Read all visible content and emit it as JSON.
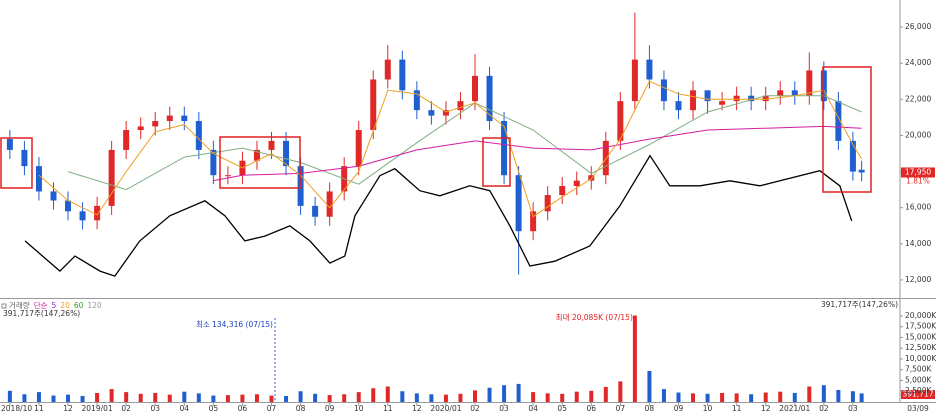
{
  "chart_data": [
    {
      "type": "candlestick",
      "xlim": [
        -0.34,
        30.62
      ],
      "ylim": [
        11000,
        27500
      ],
      "yticks": [
        {
          "value": 12000,
          "label": "12,000"
        },
        {
          "value": 14000,
          "label": "14,000"
        },
        {
          "value": 16000,
          "label": "16,000"
        },
        {
          "value": 18000,
          "label": "18,000"
        },
        {
          "value": 20000,
          "label": "20,000"
        },
        {
          "value": 22000,
          "label": "22,000"
        },
        {
          "value": 24000,
          "label": "24,000"
        },
        {
          "value": 26000,
          "label": "26,000"
        }
      ],
      "up_color": "#e02828",
      "down_color": "#1f5fd0",
      "x": [
        0,
        0.5,
        1,
        1.5,
        2,
        2.5,
        3,
        3.5,
        4,
        4.5,
        5,
        5.5,
        6,
        6.5,
        7,
        7.5,
        8,
        8.5,
        9,
        9.5,
        10,
        10.5,
        11,
        11.5,
        12,
        12.5,
        13,
        13.5,
        14,
        14.5,
        15,
        15.5,
        16,
        16.5,
        17,
        17.5,
        18,
        18.5,
        19,
        19.5,
        20,
        20.5,
        21,
        21.5,
        22,
        22.5,
        23,
        23.5,
        24,
        24.5,
        25,
        25.5,
        26,
        26.5,
        27,
        27.5,
        28,
        28.5,
        29,
        29.3
      ],
      "open": [
        19800,
        19200,
        18300,
        16900,
        16400,
        15800,
        15300,
        16100,
        19200,
        20300,
        20500,
        20800,
        21100,
        20800,
        19200,
        17800,
        17800,
        18600,
        19200,
        19700,
        18300,
        16100,
        15500,
        16900,
        18300,
        20300,
        23100,
        24200,
        22500,
        21400,
        21100,
        21400,
        21900,
        23300,
        20800,
        17800,
        14700,
        15800,
        16700,
        17200,
        17500,
        17800,
        19700,
        21900,
        24200,
        23100,
        21900,
        21400,
        22500,
        21700,
        21900,
        22200,
        21900,
        22200,
        22500,
        22200,
        23600,
        21900,
        19700,
        18100
      ],
      "high": [
        20300,
        19700,
        18800,
        17400,
        16900,
        16300,
        16600,
        19700,
        20800,
        21000,
        21300,
        21600,
        21600,
        21300,
        19700,
        18300,
        19100,
        19700,
        20200,
        20200,
        18800,
        16600,
        17400,
        18800,
        20800,
        23600,
        25000,
        24700,
        23000,
        21900,
        21900,
        22400,
        24500,
        23800,
        21300,
        18300,
        16300,
        17200,
        17700,
        18000,
        18300,
        20200,
        22400,
        26800,
        25000,
        23600,
        22400,
        23000,
        22400,
        22400,
        22700,
        22700,
        22700,
        23000,
        23000,
        24600,
        24100,
        22400,
        20200,
        18600
      ],
      "low": [
        18700,
        17800,
        16400,
        15900,
        15300,
        14800,
        14800,
        15600,
        18700,
        19800,
        20000,
        20300,
        20300,
        18700,
        17300,
        17300,
        17300,
        18100,
        18700,
        17800,
        15600,
        15000,
        15000,
        16400,
        17800,
        19800,
        22600,
        22000,
        20900,
        20600,
        20600,
        20900,
        21400,
        20300,
        17300,
        12300,
        14200,
        15300,
        16200,
        16700,
        17000,
        17300,
        19200,
        21400,
        22600,
        21400,
        20900,
        20900,
        21200,
        21400,
        21400,
        21400,
        21400,
        21700,
        21700,
        21700,
        21400,
        19200,
        17500,
        17450
      ],
      "close": [
        19200,
        18300,
        16900,
        16400,
        15800,
        15300,
        16100,
        19200,
        20300,
        20500,
        20800,
        21100,
        20800,
        19200,
        17800,
        17800,
        18600,
        19200,
        19700,
        18300,
        16100,
        15500,
        16900,
        18300,
        20300,
        23100,
        24200,
        22500,
        21400,
        21100,
        21400,
        21900,
        23300,
        20800,
        17800,
        14700,
        15800,
        16700,
        17200,
        17500,
        17800,
        19700,
        21900,
        24200,
        23100,
        21900,
        21400,
        22500,
        21900,
        21900,
        22200,
        21900,
        22200,
        22500,
        22200,
        23600,
        21900,
        19700,
        18000,
        17950
      ],
      "series": [
        {
          "color": "#000000",
          "x": [
            0.52,
            1.72,
            2.24,
            3.1,
            3.61,
            4.47,
            5.5,
            6.71,
            7.4,
            8.08,
            8.77,
            9.63,
            10.32,
            11.01,
            11.52,
            11.87,
            12.73,
            13.24,
            14.1,
            14.79,
            15.82,
            16.51,
            17.2,
            17.89,
            18.75,
            19.95,
            20.98,
            22.02,
            22.7,
            23.74,
            24.77,
            25.8,
            26.49,
            27.86,
            28.55,
            28.96
          ],
          "values": [
            14160,
            12490,
            13320,
            12490,
            12210,
            14160,
            15550,
            16380,
            15550,
            14160,
            14430,
            14990,
            14160,
            12930,
            13320,
            15550,
            17770,
            18160,
            16940,
            16660,
            17210,
            16940,
            14990,
            12770,
            13040,
            13880,
            16100,
            18880,
            17210,
            17210,
            17490,
            17210,
            17490,
            18050,
            17210,
            15270
          ]
        },
        {
          "color": "#7fae7f",
          "x": [
            2,
            4,
            6,
            8,
            10,
            12,
            14,
            16,
            18,
            20,
            22,
            24,
            26,
            28,
            29.3
          ],
          "values": [
            18000,
            17000,
            18800,
            19300,
            18500,
            17300,
            19600,
            21800,
            20300,
            17900,
            19500,
            21300,
            22200,
            22200,
            21300
          ]
        },
        {
          "color": "#d41ca0",
          "x": [
            7,
            8,
            10,
            12,
            14,
            16,
            18,
            20,
            22,
            24,
            26,
            28,
            29.3
          ],
          "values": [
            17500,
            17800,
            17900,
            18300,
            19200,
            19700,
            19300,
            19200,
            19800,
            20300,
            20400,
            20500,
            20400
          ]
        },
        {
          "color": "#eea020",
          "x": [
            1,
            2,
            3,
            4,
            5,
            6,
            7,
            8,
            9,
            10,
            11,
            12,
            13,
            14,
            15,
            16,
            17,
            18,
            19,
            20,
            21,
            22,
            23,
            24,
            25,
            26,
            27,
            28,
            29,
            29.3
          ],
          "values": [
            17800,
            16400,
            15600,
            18000,
            20200,
            20600,
            19000,
            18200,
            19000,
            17800,
            16000,
            18000,
            22500,
            22300,
            21300,
            21800,
            20500,
            15500,
            16600,
            17600,
            19800,
            23000,
            22300,
            22000,
            22000,
            22000,
            22200,
            22500,
            19500,
            18700
          ]
        }
      ],
      "last_price": {
        "value": 17950,
        "label": "17,950"
      },
      "change": "1.81%"
    },
    {
      "type": "bar",
      "xlim": [
        -0.34,
        30.62
      ],
      "ylim": [
        0,
        23700
      ],
      "yticks": [
        {
          "value": 2500,
          "label": "2,500K"
        },
        {
          "value": 5000,
          "label": "5,000K"
        },
        {
          "value": 7500,
          "label": "7,500K"
        },
        {
          "value": 10000,
          "label": "10,000K"
        },
        {
          "value": 12500,
          "label": "12,500K"
        },
        {
          "value": 15000,
          "label": "15,000K"
        },
        {
          "value": 17500,
          "label": "17,500K"
        },
        {
          "value": 20000,
          "label": "20,000K"
        }
      ],
      "xticks": [
        {
          "value": 0,
          "label": "2018/10"
        },
        {
          "value": 1,
          "label": "11"
        },
        {
          "value": 2,
          "label": "12"
        },
        {
          "value": 3,
          "label": "2019/01"
        },
        {
          "value": 4,
          "label": "02"
        },
        {
          "value": 5,
          "label": "03"
        },
        {
          "value": 6,
          "label": "04"
        },
        {
          "value": 7,
          "label": "05"
        },
        {
          "value": 8,
          "label": "06"
        },
        {
          "value": 9,
          "label": "07"
        },
        {
          "value": 10,
          "label": "08"
        },
        {
          "value": 11,
          "label": "09"
        },
        {
          "value": 12,
          "label": "10"
        },
        {
          "value": 13,
          "label": "11"
        },
        {
          "value": 14,
          "label": "12"
        },
        {
          "value": 15,
          "label": "2020/01"
        },
        {
          "value": 16,
          "label": "02"
        },
        {
          "value": 17,
          "label": "03"
        },
        {
          "value": 18,
          "label": "04"
        },
        {
          "value": 19,
          "label": "05"
        },
        {
          "value": 20,
          "label": "06"
        },
        {
          "value": 21,
          "label": "07"
        },
        {
          "value": 22,
          "label": "08"
        },
        {
          "value": 23,
          "label": "09"
        },
        {
          "value": 24,
          "label": "10"
        },
        {
          "value": 25,
          "label": "11"
        },
        {
          "value": 26,
          "label": "12"
        },
        {
          "value": 27,
          "label": "2021/01"
        },
        {
          "value": 28,
          "label": "02"
        },
        {
          "value": 29,
          "label": "03"
        }
      ],
      "date_label": "03/09",
      "values": [
        2600,
        1800,
        2300,
        1500,
        1700,
        1400,
        2100,
        3000,
        2300,
        1900,
        2100,
        1700,
        2400,
        2000,
        1500,
        1600,
        1700,
        1800,
        1500,
        1400,
        2500,
        1900,
        1600,
        1800,
        2300,
        3200,
        3600,
        2500,
        2000,
        1800,
        1700,
        1900,
        2700,
        3300,
        3900,
        4200,
        2300,
        2000,
        1900,
        2400,
        2600,
        3500,
        4800,
        20085,
        7200,
        3000,
        2200,
        2000,
        1900,
        2100,
        2000,
        1800,
        2200,
        2400,
        2100,
        3600,
        3900,
        2800,
        2500,
        2000
      ],
      "legend": [
        {
          "label": "거래량",
          "color": "#666666"
        },
        {
          "label": "단순",
          "color": "#d41ca0"
        },
        {
          "label": "5",
          "color": "#8a2be2"
        },
        {
          "label": "20",
          "color": "#eea020"
        },
        {
          "label": "60",
          "color": "#2e9e2e"
        },
        {
          "label": "120",
          "color": "#999999"
        }
      ],
      "volume_text": "391,717주(147,26%)",
      "last_volume": "391,717",
      "min_note": "최소 134,316 (07/15)",
      "max_note": "최대 20,085K (07/15)"
    }
  ]
}
